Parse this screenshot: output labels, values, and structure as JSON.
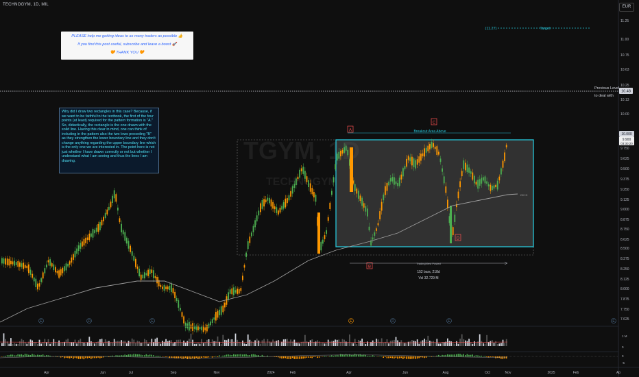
{
  "header": {
    "title": "TECHNOGYM, 1D, MIL",
    "currency": "EUR"
  },
  "watermark": {
    "symbol": "TGYM, 1D",
    "name": "TECHNOGYM"
  },
  "note": {
    "line1": "PLEASE help me getting ideas to as many traders as possible 👍",
    "line2": "If you find this post useful, subscribe and leave a boost 🚀",
    "line3": "🧡 THANK YOU 🧡"
  },
  "explanation": "Why did I draw two rectangles in this case? Because, if we want to be faithful to the textbook, the first of the four points (at least) required for the pattern formation is \"A.\" So, didactically, the rectangle is the one drawn with the solid line. Having this clear in mind, one can think of including in the pattern also the two lows preceding \"B\" as they strengthen the lower boundary line and they don't change anything regarding the upper boundary line which is the only one we are interested in. The point here is not just whether I have drawn correctly or not but whether I understand what I am seeing and thus the lines I am drawing.",
  "annotations": {
    "point_a": "A",
    "point_b": "B",
    "point_c": "C",
    "point_d": "D",
    "breakout_label": "Breakout Area Above",
    "target_label": "(11.27)",
    "target_text": "Target",
    "previous_level_line1": "Previous Level",
    "previous_level_line2": "to deal with",
    "ma_label": "200 D",
    "posted_label": "TradingView Posted",
    "range_bars": "152 bars, 218d",
    "range_vol": "Vol 32.729 M"
  },
  "price_axis": {
    "ticks": [
      "11.25",
      "11.00",
      "10.75",
      "10.63",
      "10.25",
      "10.13",
      "10.00",
      "9.750",
      "9.625",
      "9.500",
      "9.375",
      "9.250",
      "9.125",
      "9.000",
      "8.875",
      "8.750",
      "8.625",
      "8.500",
      "8.375",
      "8.250",
      "8.125",
      "8.000",
      "7.875",
      "7.750",
      "7.625"
    ],
    "previous_level": "10.48",
    "current_price": "9.900",
    "countdown": "03:30:20",
    "top_tag": "10.000"
  },
  "time_axis": {
    "labels": [
      "Apr",
      "Jun",
      "Jul",
      "Sep",
      "Nov",
      "2024",
      "Feb",
      "Apr",
      "Jun",
      "Aug",
      "Oct",
      "Nov",
      "2025",
      "Feb",
      "Ap"
    ]
  },
  "events": [
    "E",
    "D",
    "E",
    "E",
    "D",
    "E",
    "E"
  ],
  "indicator_labels": {
    "volume": "1 M",
    "vol_zero": "0",
    "osc_zero": "0",
    "osc_neg": "-5"
  },
  "colors": {
    "background": "#0f0f0f",
    "up_candle": "#4caf50",
    "down_candle": "#ff9800",
    "rectangle": "#26c6da",
    "ma_line": "#9e9e9e",
    "marker": "#ff5252"
  }
}
